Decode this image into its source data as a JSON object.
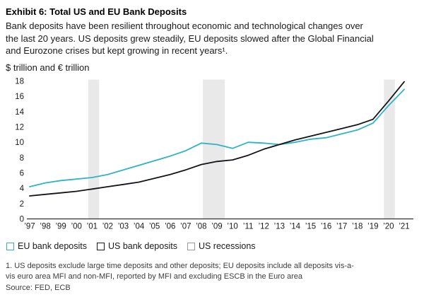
{
  "header": {
    "title": "Exhibit 6: Total US and EU Bank Deposits",
    "subtitle": "Bank deposits have been resilient throughout economic and technological changes over the last 20 years. US deposits grew steadily, EU deposits slowed after the Global Financial and Eurozone crises but kept growing in recent years¹.",
    "units_label": "$ trillion and € trillion"
  },
  "chart_data": {
    "type": "line",
    "title": "Exhibit 6: Total US and EU Bank Deposits",
    "ylabel": "$ trillion and € trillion",
    "xlabel": "",
    "grid": false,
    "legend_position": "bottom",
    "ylim": [
      0,
      18
    ],
    "y_ticks": [
      0,
      2,
      4,
      6,
      8,
      10,
      12,
      14,
      16,
      18
    ],
    "x": [
      1997,
      1998,
      1999,
      2000,
      2001,
      2002,
      2003,
      2004,
      2005,
      2006,
      2007,
      2008,
      2009,
      2010,
      2011,
      2012,
      2013,
      2014,
      2015,
      2016,
      2017,
      2018,
      2019,
      2020,
      2021
    ],
    "x_tick_labels": [
      "’97",
      "’98",
      "’99",
      "’00",
      "’01",
      "’02",
      "’03",
      "’04",
      "’05",
      "’06",
      "’07",
      "’08",
      "’09",
      "’10",
      "’11",
      "’12",
      "’13",
      "’14",
      "’15",
      "’16",
      "’17",
      "’18",
      "’19",
      "’20",
      "’21"
    ],
    "series": [
      {
        "name": "EU bank deposits",
        "color": "#2eb4c4",
        "values": [
          4.2,
          4.7,
          5.0,
          5.2,
          5.4,
          5.8,
          6.4,
          7.0,
          7.6,
          8.2,
          8.9,
          9.9,
          9.7,
          9.2,
          10.0,
          9.9,
          9.7,
          10.0,
          10.4,
          10.6,
          11.1,
          11.6,
          12.5,
          14.8,
          16.9
        ]
      },
      {
        "name": "US bank deposits",
        "color": "#101418",
        "values": [
          3.0,
          3.2,
          3.4,
          3.6,
          3.9,
          4.2,
          4.5,
          4.8,
          5.3,
          5.8,
          6.4,
          7.1,
          7.5,
          7.7,
          8.3,
          9.1,
          9.7,
          10.3,
          10.8,
          11.3,
          11.8,
          12.3,
          13.0,
          15.4,
          17.9
        ]
      }
    ],
    "recession_bands": {
      "label": "US recessions",
      "color": "#e9e9e9",
      "ranges": [
        [
          2000.75,
          2001.45
        ],
        [
          2008.1,
          2009.5
        ],
        [
          2019.7,
          2020.4
        ]
      ]
    },
    "axis_color": "#333333",
    "tick_label_color": "#1a1a1a"
  },
  "legend": {
    "items": [
      {
        "label": "EU bank deposits",
        "color": "#2eb4c4"
      },
      {
        "label": "US bank deposits",
        "color": "#1a1a1a"
      },
      {
        "label": "US recessions",
        "color": "#9a9a9a"
      }
    ]
  },
  "footer": {
    "footnote": "1. US deposits exclude large time deposits and other deposits; EU deposits include all deposits vis-a-vis euro area MFI and non-MFI, reported by MFI and excluding ESCB in the Euro area",
    "source": "Source: FED, ECB"
  }
}
